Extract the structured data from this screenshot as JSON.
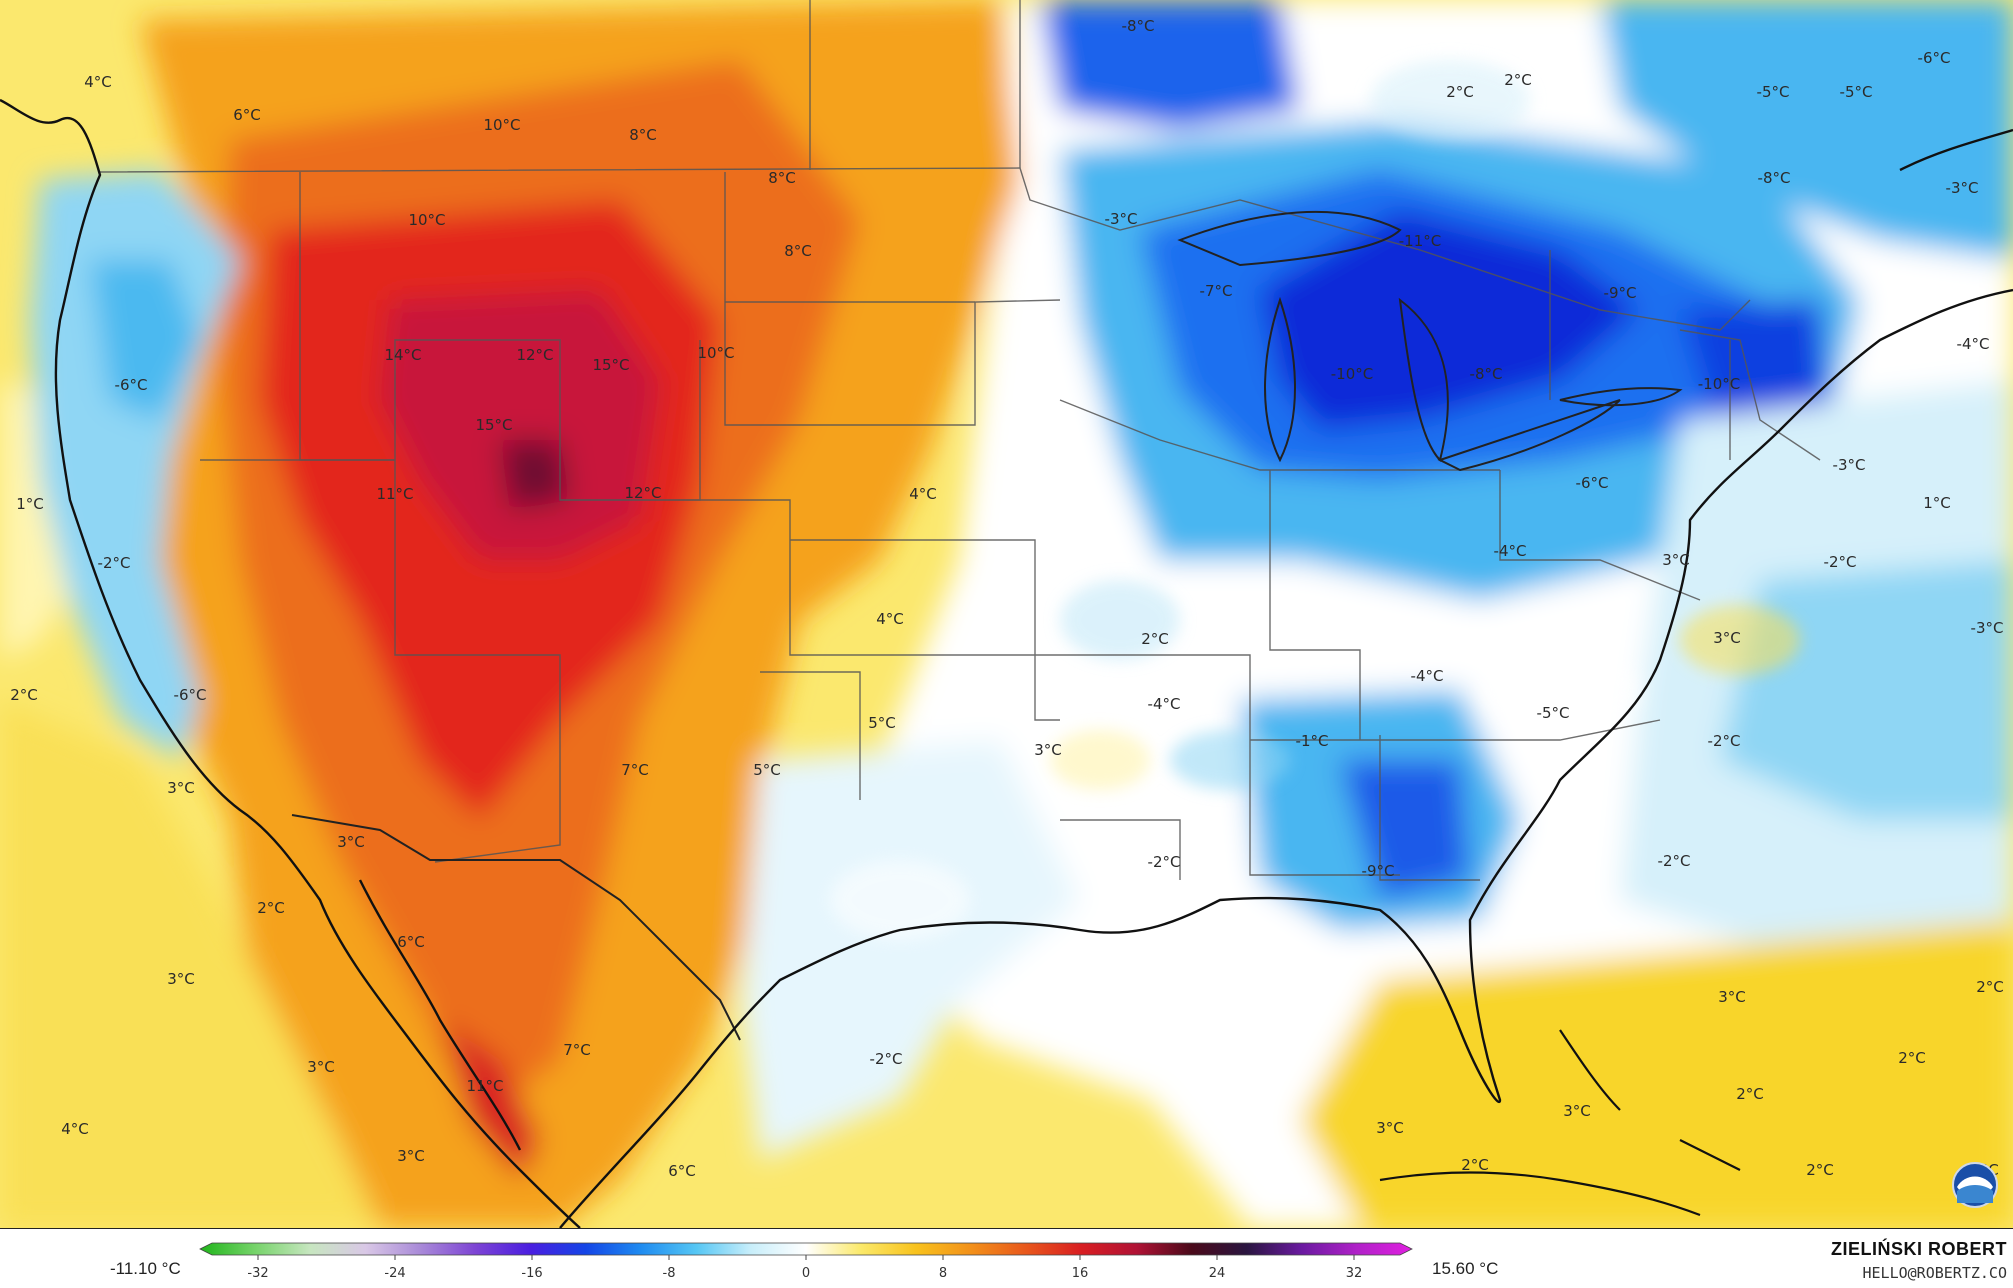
{
  "colors": {
    "warm_light": "#f7e56b",
    "warm_yellow": "#f7c923",
    "warm_orange": "#f39a16",
    "warm_deep_orange": "#ec6a1c",
    "warm_red": "#e3261f",
    "warm_crimson": "#c8143a",
    "warm_maroon": "#6f1030",
    "cold_pale": "#d8f0fa",
    "cold_light": "#9adcf6",
    "cold_mid": "#3fb5f1",
    "cold_blue": "#1a6ff0",
    "cold_deep": "#0a2bd8",
    "neutral": "#ffffff",
    "border": "#555555",
    "coast": "#111111"
  },
  "labels": [
    {
      "text": "4°C"
    },
    {
      "text": "6°C"
    },
    {
      "text": "10°C"
    },
    {
      "text": "8°C"
    },
    {
      "text": "8°C"
    },
    {
      "text": "8°C"
    },
    {
      "text": "10°C"
    },
    {
      "text": "14°C"
    },
    {
      "text": "12°C"
    },
    {
      "text": "15°C"
    },
    {
      "text": "10°C"
    },
    {
      "text": "15°C"
    },
    {
      "text": "11°C"
    },
    {
      "text": "12°C"
    },
    {
      "text": "4°C"
    },
    {
      "text": "4°C"
    },
    {
      "text": "5°C"
    },
    {
      "text": "7°C"
    },
    {
      "text": "5°C"
    },
    {
      "text": "3°C"
    },
    {
      "text": "2°C"
    },
    {
      "text": "-6°C"
    },
    {
      "text": "1°C"
    },
    {
      "text": "-2°C"
    },
    {
      "text": "2°C"
    },
    {
      "text": "-6°C"
    },
    {
      "text": "3°C"
    },
    {
      "text": "3°C"
    },
    {
      "text": "2°C"
    },
    {
      "text": "3°C"
    },
    {
      "text": "6°C"
    },
    {
      "text": "3°C"
    },
    {
      "text": "7°C"
    },
    {
      "text": "11°C"
    },
    {
      "text": "4°C"
    },
    {
      "text": "3°C"
    },
    {
      "text": "6°C"
    },
    {
      "text": "-8°C"
    },
    {
      "text": "2°C"
    },
    {
      "text": "2°C"
    },
    {
      "text": "-6°C"
    },
    {
      "text": "-5°C"
    },
    {
      "text": "-5°C"
    },
    {
      "text": "-8°C"
    },
    {
      "text": "-3°C"
    },
    {
      "text": "-3°C"
    },
    {
      "text": "-11°C"
    },
    {
      "text": "-7°C"
    },
    {
      "text": "-9°C"
    },
    {
      "text": "-10°C"
    },
    {
      "text": "-8°C"
    },
    {
      "text": "-10°C"
    },
    {
      "text": "-4°C"
    },
    {
      "text": "-6°C"
    },
    {
      "text": "-3°C"
    },
    {
      "text": "-4°C"
    },
    {
      "text": "3°C"
    },
    {
      "text": "1°C"
    },
    {
      "text": "-2°C"
    },
    {
      "text": "3°C"
    },
    {
      "text": "-3°C"
    },
    {
      "text": "-4°C"
    },
    {
      "text": "-5°C"
    },
    {
      "text": "-4°C"
    },
    {
      "text": "-1°C"
    },
    {
      "text": "-2°C"
    },
    {
      "text": "-2°C"
    },
    {
      "text": "-9°C"
    },
    {
      "text": "-2°C"
    },
    {
      "text": "-2°C"
    },
    {
      "text": "2°C"
    },
    {
      "text": "3°C"
    },
    {
      "text": "2°C"
    },
    {
      "text": "2°C"
    },
    {
      "text": "3°C"
    },
    {
      "text": "3°C"
    },
    {
      "text": "2°C"
    },
    {
      "text": "2°C"
    },
    {
      "text": "3°C"
    }
  ],
  "scale": {
    "min_label": "-11.10 °C",
    "max_label": "15.60 °C",
    "ticks": [
      "-32",
      "-24",
      "-16",
      "-8",
      "0",
      "8",
      "16",
      "24",
      "32"
    ],
    "stops": [
      "#1fb51a",
      "#76d36a",
      "#c7e6c0",
      "#d9c8e6",
      "#a98ad8",
      "#7d44d4",
      "#4a1ee0",
      "#1445e6",
      "#1f8bf0",
      "#55c6f4",
      "#c8eefa",
      "#ffffff",
      "#fbe96a",
      "#f8c21d",
      "#f2901a",
      "#e8571c",
      "#d81e22",
      "#b01235",
      "#4a0a1a",
      "#2a1540",
      "#6a1aa0",
      "#b021c8",
      "#e020e0"
    ]
  },
  "credit": {
    "name": "ZIELIŃSKI ROBERT",
    "email": "HELLO@ROBERTZ.CO"
  },
  "logo": {
    "text": "NOAA"
  }
}
